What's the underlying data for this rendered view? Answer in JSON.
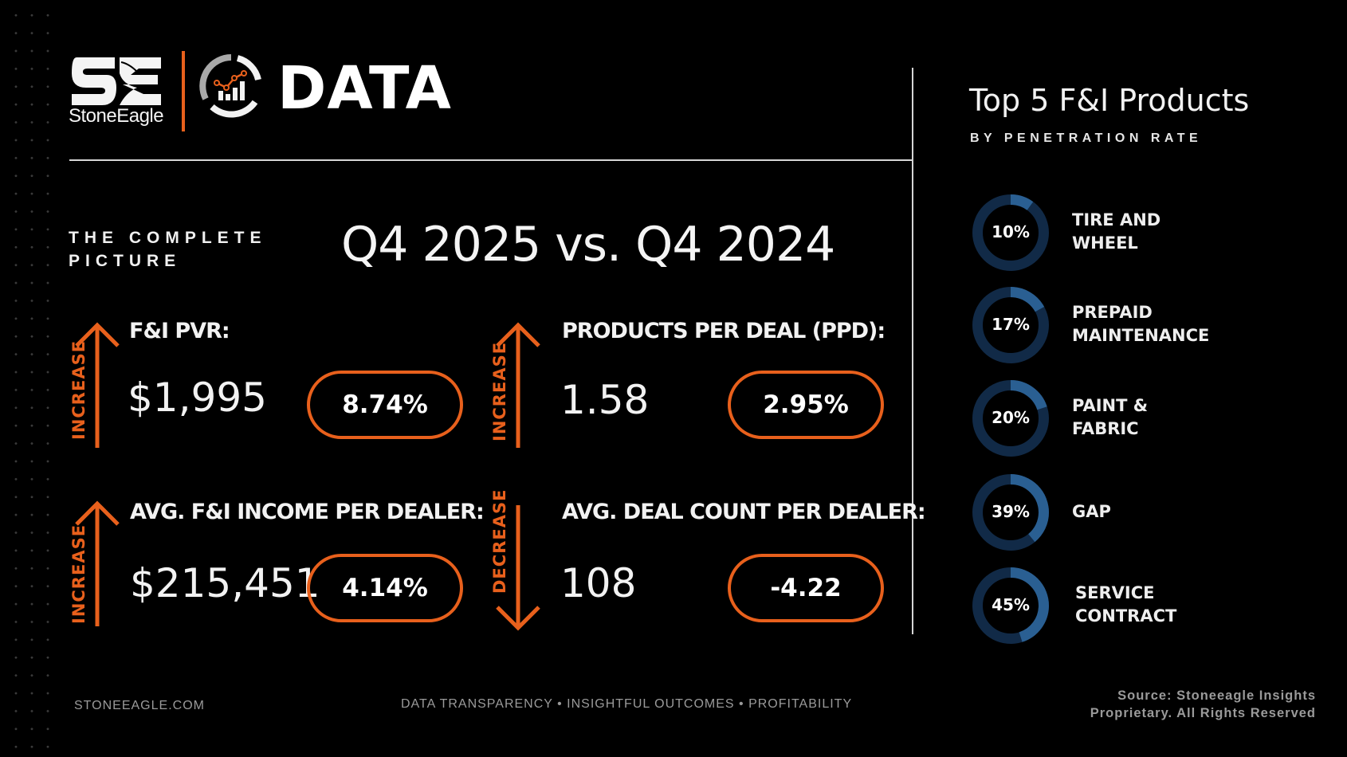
{
  "brand": {
    "company_wordmark": "StoneEagle",
    "product_word": "DATA",
    "icons": {
      "company_logo": "se-eagle-logo",
      "data_logo": "chart-in-ring-icon"
    }
  },
  "colors": {
    "accent_orange": "#e8601c",
    "donut_fill": "#2a5f92",
    "donut_track": "#112a47",
    "background": "#000000"
  },
  "heading": {
    "section_label": "THE COMPLETE PICTURE",
    "section_label_line1": "THE COMPLETE",
    "section_label_line2": "PICTURE",
    "comparison": "Q4 2025 vs. Q4 2024"
  },
  "kpis": [
    {
      "label": "F&I PVR:",
      "value": "$1,995",
      "change": "8.74%",
      "trend": "INCREASE",
      "direction": "up"
    },
    {
      "label": "PRODUCTS PER DEAL (PPD):",
      "value": "1.58",
      "change": "2.95%",
      "trend": "INCREASE",
      "direction": "up"
    },
    {
      "label": "AVG. F&I INCOME PER DEALER:",
      "value": "$215,451",
      "change": "4.14%",
      "trend": "INCREASE",
      "direction": "up"
    },
    {
      "label": "AVG. DEAL COUNT PER DEALER:",
      "value": "108",
      "change": "-4.22",
      "trend": "DECREASE",
      "direction": "down"
    }
  ],
  "top_products": {
    "title": "Top 5 F&I Products",
    "subtitle": "BY PENETRATION RATE",
    "items": [
      {
        "label_line1": "TIRE AND",
        "label_line2": "WHEEL",
        "percent_label": "10%",
        "value": 10
      },
      {
        "label_line1": "PREPAID",
        "label_line2": "MAINTENANCE",
        "percent_label": "17%",
        "value": 17
      },
      {
        "label_line1": "PAINT &",
        "label_line2": "FABRIC",
        "percent_label": "20%",
        "value": 20
      },
      {
        "label_line1": "GAP",
        "label_line2": "",
        "percent_label": "39%",
        "value": 39
      },
      {
        "label_line1": "SERVICE",
        "label_line2": "CONTRACT",
        "percent_label": "45%",
        "value": 45
      }
    ]
  },
  "chart_data": {
    "type": "pie",
    "title": "Top 5 F&I Products",
    "subtitle": "BY PENETRATION RATE",
    "categories": [
      "Tire and Wheel",
      "Prepaid Maintenance",
      "Paint & Fabric",
      "GAP",
      "Service Contract"
    ],
    "values": [
      10,
      17,
      20,
      39,
      45
    ],
    "unit": "%",
    "note": "each product shown as its own donut gauge out of 100%"
  },
  "footer": {
    "website": "STONEEAGLE.COM",
    "tagline": "DATA TRANSPARENCY • INSIGHTFUL OUTCOMES • PROFITABILITY",
    "source_line1": "Source: Stoneeagle Insights",
    "source_line2": "Proprietary. All Rights Reserved"
  }
}
